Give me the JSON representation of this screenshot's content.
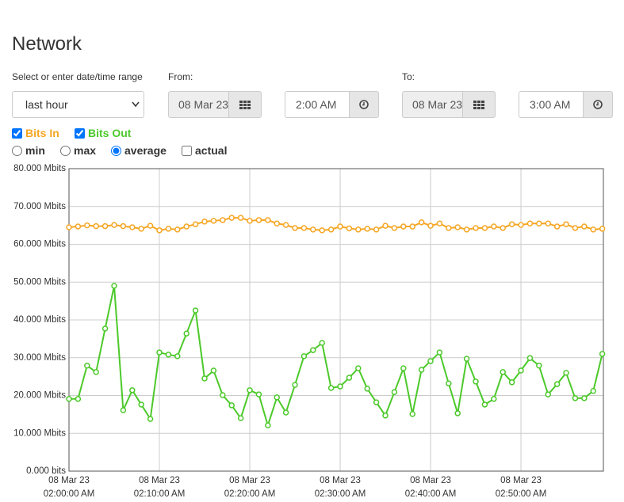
{
  "header": {
    "title": "Network"
  },
  "range": {
    "label": "Select or enter date/time range",
    "selected": "last hour",
    "from_label": "From:",
    "from_date": "08 Mar 23",
    "from_time": "2:00 AM",
    "to_label": "To:",
    "to_date": "08 Mar 23",
    "to_time": "3:00 AM"
  },
  "modes": [
    "min",
    "max",
    "average",
    "actual"
  ],
  "chart_data": {
    "type": "line",
    "categories": [
      [
        "08 Mar 23",
        "02:00:00 AM"
      ],
      null,
      null,
      null,
      null,
      null,
      null,
      null,
      null,
      null,
      [
        "08 Mar 23",
        "02:10:00 AM"
      ],
      null,
      null,
      null,
      null,
      null,
      null,
      null,
      null,
      null,
      [
        "08 Mar 23",
        "02:20:00 AM"
      ],
      null,
      null,
      null,
      null,
      null,
      null,
      null,
      null,
      null,
      [
        "08 Mar 23",
        "02:30:00 AM"
      ],
      null,
      null,
      null,
      null,
      null,
      null,
      null,
      null,
      null,
      [
        "08 Mar 23",
        "02:40:00 AM"
      ],
      null,
      null,
      null,
      null,
      null,
      null,
      null,
      null,
      null,
      [
        "08 Mar 23",
        "02:50:00 AM"
      ],
      null,
      null,
      null,
      null,
      null,
      null,
      null,
      null,
      null
    ],
    "series": [
      {
        "name": "Bits In",
        "color": "#f5a623",
        "values": [
          64.5,
          64.7,
          65.0,
          64.8,
          64.8,
          65.1,
          64.8,
          64.5,
          64.1,
          64.9,
          63.7,
          64.1,
          63.9,
          64.7,
          65.3,
          66.0,
          66.2,
          66.4,
          67.0,
          67.0,
          66.2,
          66.4,
          66.4,
          65.5,
          65.1,
          64.3,
          64.3,
          63.9,
          63.7,
          63.9,
          64.7,
          64.2,
          63.9,
          64.1,
          63.9,
          64.9,
          64.3,
          64.7,
          64.7,
          65.8,
          64.9,
          65.5,
          64.3,
          64.5,
          63.9,
          64.3,
          64.3,
          64.7,
          64.3,
          65.3,
          65.1,
          65.5,
          65.5,
          65.5,
          64.7,
          65.3,
          64.3,
          64.7,
          63.9,
          64.1
        ]
      },
      {
        "name": "Bits Out",
        "color": "#4cc92a",
        "values": [
          19.1,
          19.1,
          27.9,
          26.2,
          37.7,
          49.0,
          16.1,
          21.4,
          17.6,
          13.8,
          31.4,
          30.8,
          30.4,
          36.4,
          42.5,
          24.5,
          26.6,
          20.1,
          17.4,
          14.0,
          21.4,
          20.3,
          12.1,
          19.5,
          15.5,
          22.8,
          30.4,
          32.0,
          33.9,
          22.0,
          22.4,
          24.7,
          27.2,
          21.8,
          18.2,
          14.7,
          20.9,
          27.2,
          15.1,
          26.8,
          29.1,
          31.4,
          23.2,
          15.3,
          29.7,
          23.7,
          17.6,
          19.1,
          26.2,
          23.5,
          26.6,
          29.9,
          27.9,
          20.3,
          23.0,
          26.0,
          19.3,
          19.3,
          21.2,
          31.0
        ]
      }
    ],
    "ylim": [
      0,
      80
    ],
    "yticks": [
      {
        "value": 0,
        "label": "0.000 bits"
      },
      {
        "value": 10,
        "label": "10.000 Mbits"
      },
      {
        "value": 20,
        "label": "20.000 Mbits"
      },
      {
        "value": 30,
        "label": "30.000 Mbits"
      },
      {
        "value": 40,
        "label": "40.000 Mbits"
      },
      {
        "value": 50,
        "label": "50.000 Mbits"
      },
      {
        "value": 60,
        "label": "60.000 Mbits"
      },
      {
        "value": 70,
        "label": "70.000 Mbits"
      },
      {
        "value": 80,
        "label": "80.000 Mbits"
      }
    ],
    "grid": true
  }
}
